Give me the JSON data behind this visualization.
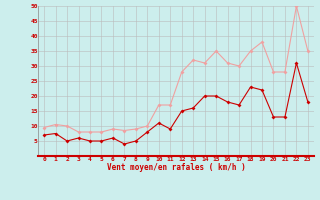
{
  "x": [
    0,
    1,
    2,
    3,
    4,
    5,
    6,
    7,
    8,
    9,
    10,
    11,
    12,
    13,
    14,
    15,
    16,
    17,
    18,
    19,
    20,
    21,
    22,
    23
  ],
  "rafales": [
    9.5,
    10.5,
    10,
    8,
    8,
    8,
    9,
    8.5,
    9,
    10,
    17,
    17,
    28,
    32,
    31,
    35,
    31,
    30,
    35,
    38,
    28,
    28,
    50,
    35
  ],
  "moyen": [
    7,
    7.5,
    5,
    6,
    5,
    5,
    6,
    4,
    5,
    8,
    11,
    9,
    15,
    16,
    20,
    20,
    18,
    17,
    23,
    22,
    13,
    13,
    31,
    18
  ],
  "bg_color": "#cceeed",
  "grid_color": "#bbbbbb",
  "line_color_rafales": "#f0a0a0",
  "line_color_moyen": "#cc0000",
  "xlabel": "Vent moyen/en rafales ( km/h )",
  "xlabel_color": "#cc0000",
  "tick_color": "#cc0000",
  "ylim": [
    0,
    50
  ],
  "ytick_vals": [
    5,
    10,
    15,
    20,
    25,
    30,
    35,
    40,
    45,
    50
  ],
  "ytick_labels": [
    "5",
    "10",
    "15",
    "20",
    "25",
    "30",
    "35",
    "40",
    "45",
    "50"
  ]
}
